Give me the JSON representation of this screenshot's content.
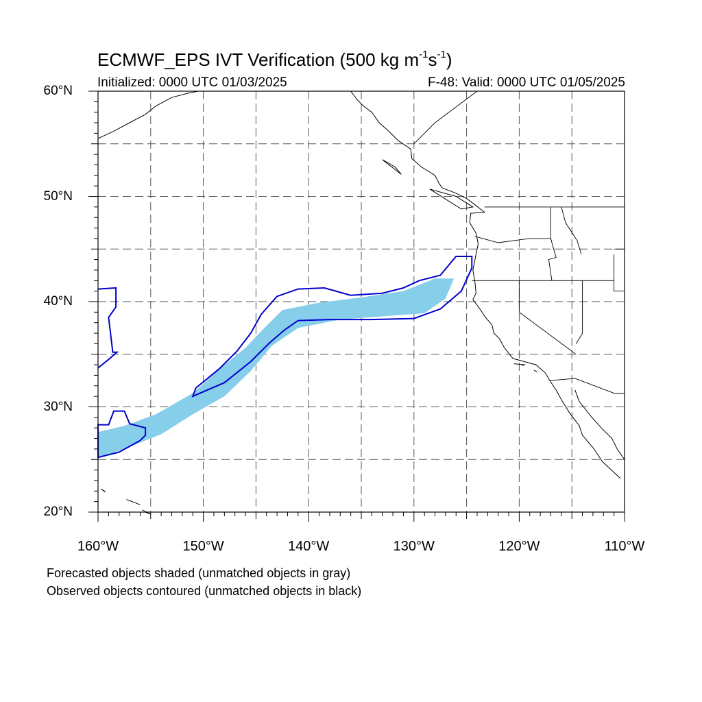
{
  "title": {
    "prefix": "ECMWF_EPS IVT Verification (500 kg m",
    "sup1": "-1",
    "middle": "s",
    "sup2": "-1",
    "suffix": ")"
  },
  "initialized": "Initialized: 0000 UTC 01/03/2025",
  "valid": "F-48: Valid: 0000 UTC 01/05/2025",
  "footnote_forecast": "Forecasted objects shaded (unmatched objects in gray)",
  "footnote_observed": "Observed objects contoured (unmatched objects in black)",
  "map": {
    "lon_range": [
      -160,
      -110
    ],
    "lat_range": [
      20,
      60
    ],
    "lon_labels": [
      "160°W",
      "150°W",
      "140°W",
      "130°W",
      "120°W",
      "110°W"
    ],
    "lat_labels": [
      "20°N",
      "30°N",
      "40°N",
      "50°N",
      "60°N"
    ],
    "colors": {
      "forecast_fill": "#87ceeb",
      "observed_contour": "#0000cc",
      "coastline": "#000000",
      "gridline": "#555555"
    },
    "forecast_object": [
      [
        -160,
        25.1
      ],
      [
        -157,
        26.2
      ],
      [
        -154,
        27.4
      ],
      [
        -151,
        29.3
      ],
      [
        -148,
        31.0
      ],
      [
        -145.5,
        33.4
      ],
      [
        -143.5,
        35.8
      ],
      [
        -141,
        37.5
      ],
      [
        -137,
        38.3
      ],
      [
        -133,
        38.6
      ],
      [
        -129,
        38.9
      ],
      [
        -127,
        40.3
      ],
      [
        -126.2,
        42.2
      ],
      [
        -128,
        42.2
      ],
      [
        -131,
        41.0
      ],
      [
        -135,
        40.4
      ],
      [
        -139,
        39.9
      ],
      [
        -142.5,
        39.2
      ],
      [
        -144.5,
        37.2
      ],
      [
        -146,
        35.6
      ],
      [
        -148,
        34.0
      ],
      [
        -151,
        31.3
      ],
      [
        -154.5,
        29.3
      ],
      [
        -157.5,
        28.2
      ],
      [
        -160,
        27.6
      ]
    ],
    "observed_object": [
      [
        -160,
        25.2
      ],
      [
        -158,
        25.7
      ],
      [
        -156,
        26.8
      ],
      [
        -155.5,
        27.3
      ],
      [
        -155.5,
        28.0
      ],
      [
        -157,
        28.4
      ],
      [
        -157.5,
        29.6
      ],
      [
        -158.5,
        29.6
      ],
      [
        -159,
        28.3
      ],
      [
        -160,
        28.3
      ]
    ],
    "observed_object_main": [
      [
        -151,
        31.0
      ],
      [
        -148,
        32.3
      ],
      [
        -145.5,
        34.3
      ],
      [
        -143.8,
        36.0
      ],
      [
        -142.3,
        37.3
      ],
      [
        -141,
        38.2
      ],
      [
        -138,
        38.3
      ],
      [
        -134,
        38.3
      ],
      [
        -130,
        38.4
      ],
      [
        -127.5,
        39.3
      ],
      [
        -125.5,
        41.0
      ],
      [
        -124.5,
        43.2
      ],
      [
        -124.5,
        44.3
      ],
      [
        -126,
        44.3
      ],
      [
        -127.5,
        42.5
      ],
      [
        -129.5,
        42.0
      ],
      [
        -131,
        41.3
      ],
      [
        -133,
        40.8
      ],
      [
        -136,
        40.6
      ],
      [
        -138.5,
        41.3
      ],
      [
        -141,
        41.2
      ],
      [
        -143,
        40.5
      ],
      [
        -144.5,
        38.8
      ],
      [
        -145.5,
        37.0
      ],
      [
        -146.8,
        35.3
      ],
      [
        -148.5,
        33.6
      ],
      [
        -150.7,
        31.8
      ]
    ],
    "observed_object_nw": [
      [
        -160,
        41.2
      ],
      [
        -158.3,
        41.3
      ],
      [
        -158.3,
        39.5
      ],
      [
        -159,
        38.5
      ],
      [
        -158.6,
        35.2
      ],
      [
        -158.2,
        35.2
      ],
      [
        -159,
        34.5
      ],
      [
        -160,
        33.7
      ]
    ]
  }
}
